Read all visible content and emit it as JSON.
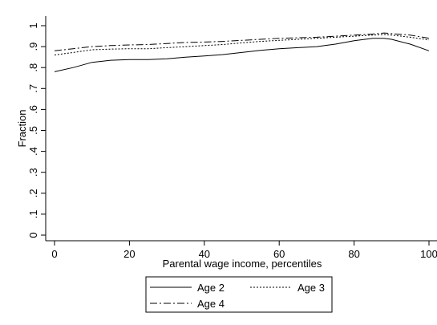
{
  "chart_data": {
    "type": "line",
    "title": "",
    "xlabel": "Parental wage income, percentiles",
    "ylabel": "Fraction",
    "xlim": [
      0,
      100
    ],
    "ylim": [
      0,
      1
    ],
    "x_ticks": [
      "0",
      "20",
      "40",
      "60",
      "80",
      "100"
    ],
    "y_ticks": [
      "0",
      ".1",
      ".2",
      ".3",
      ".4",
      ".5",
      ".6",
      ".7",
      ".8",
      ".9",
      "1"
    ],
    "grid": "none",
    "legend_position": "bottom",
    "x": [
      0,
      5,
      10,
      15,
      20,
      25,
      30,
      35,
      40,
      45,
      50,
      55,
      60,
      65,
      70,
      75,
      80,
      85,
      88,
      90,
      95,
      100
    ],
    "series": [
      {
        "name": "Age 2",
        "style": "solid",
        "values": [
          0.78,
          0.8,
          0.825,
          0.835,
          0.838,
          0.838,
          0.842,
          0.85,
          0.855,
          0.862,
          0.872,
          0.882,
          0.89,
          0.895,
          0.9,
          0.912,
          0.928,
          0.94,
          0.94,
          0.935,
          0.912,
          0.88
        ]
      },
      {
        "name": "Age 3",
        "style": "dotted",
        "values": [
          0.86,
          0.872,
          0.885,
          0.888,
          0.89,
          0.89,
          0.895,
          0.9,
          0.905,
          0.91,
          0.918,
          0.925,
          0.93,
          0.935,
          0.94,
          0.945,
          0.95,
          0.955,
          0.958,
          0.955,
          0.945,
          0.932
        ]
      },
      {
        "name": "Age 4",
        "style": "dashdot",
        "values": [
          0.88,
          0.89,
          0.9,
          0.905,
          0.908,
          0.91,
          0.915,
          0.92,
          0.922,
          0.925,
          0.93,
          0.935,
          0.94,
          0.942,
          0.945,
          0.95,
          0.955,
          0.96,
          0.965,
          0.962,
          0.955,
          0.94
        ]
      }
    ]
  }
}
